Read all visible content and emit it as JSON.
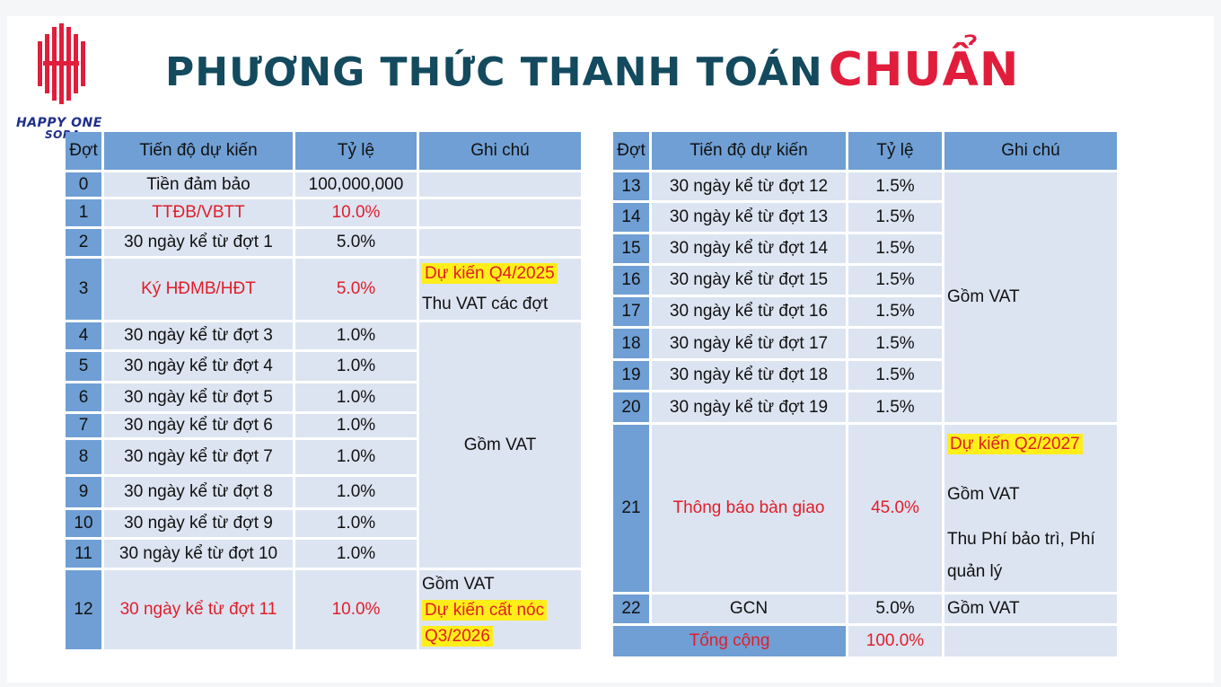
{
  "logo": {
    "line1": "HAPPY ONE",
    "line2": "SORA",
    "color": "#e11d3c"
  },
  "title": {
    "main": "PHƯƠNG THỨC THANH TOÁN",
    "accent": "CHUẨN"
  },
  "headers": [
    "Đợt",
    "Tiến độ dự kiến",
    "Tỷ lệ",
    "Ghi chú"
  ],
  "left": {
    "rows": [
      {
        "dot": "0",
        "tiendo": "Tiền đảm bảo",
        "tyle": "100,000,000"
      },
      {
        "dot": "1",
        "tiendo": "TTĐB/VBTT",
        "tyle": "10.0%"
      },
      {
        "dot": "2",
        "tiendo": "30 ngày kể từ đợt 1",
        "tyle": "5.0%"
      },
      {
        "dot": "3",
        "tiendo": "Ký HĐMB/HĐT",
        "tyle": "5.0%"
      },
      {
        "dot": "4",
        "tiendo": "30 ngày kể từ đợt 3",
        "tyle": "1.0%"
      },
      {
        "dot": "5",
        "tiendo": "30 ngày kể từ đợt 4",
        "tyle": "1.0%"
      },
      {
        "dot": "6",
        "tiendo": "30 ngày kể từ đợt 5",
        "tyle": "1.0%"
      },
      {
        "dot": "7",
        "tiendo": "30 ngày kể từ đợt 6",
        "tyle": "1.0%"
      },
      {
        "dot": "8",
        "tiendo": "30 ngày kể từ đợt 7",
        "tyle": "1.0%"
      },
      {
        "dot": "9",
        "tiendo": "30 ngày kể từ đợt 8",
        "tyle": "1.0%"
      },
      {
        "dot": "10",
        "tiendo": "30 ngày kể từ đợt 9",
        "tyle": "1.0%"
      },
      {
        "dot": "11",
        "tiendo": "30 ngày kể từ đợt 10",
        "tyle": "1.0%"
      },
      {
        "dot": "12",
        "tiendo": "30 ngày kể từ đợt 11",
        "tyle": "10.0%"
      }
    ],
    "notes": {
      "r3_hl": "Dự kiến Q4/2025",
      "r3_text": "Thu VAT các đợt",
      "r4_11": "Gồm VAT",
      "r12_text": "Gồm VAT",
      "r12_hl1": "Dự kiến cất nóc",
      "r12_hl2": "Q3/2026"
    }
  },
  "right": {
    "rows": [
      {
        "dot": "13",
        "tiendo": "30 ngày kể từ đợt 12",
        "tyle": "1.5%"
      },
      {
        "dot": "14",
        "tiendo": "30 ngày kể từ đợt 13",
        "tyle": "1.5%"
      },
      {
        "dot": "15",
        "tiendo": "30 ngày kể từ đợt 14",
        "tyle": "1.5%"
      },
      {
        "dot": "16",
        "tiendo": "30 ngày kể từ đợt 15",
        "tyle": "1.5%"
      },
      {
        "dot": "17",
        "tiendo": "30 ngày kể từ đợt 16",
        "tyle": "1.5%"
      },
      {
        "dot": "18",
        "tiendo": "30 ngày kể từ đợt 17",
        "tyle": "1.5%"
      },
      {
        "dot": "19",
        "tiendo": "30 ngày kể từ đợt 18",
        "tyle": "1.5%"
      },
      {
        "dot": "20",
        "tiendo": "30 ngày kể từ đợt 19",
        "tyle": "1.5%"
      },
      {
        "dot": "21",
        "tiendo": "Thông báo bàn giao",
        "tyle": "45.0%"
      },
      {
        "dot": "22",
        "tiendo": "GCN",
        "tyle": "5.0%"
      }
    ],
    "notes": {
      "r13_20": "Gồm VAT",
      "r21_hl": "Dự kiến Q2/2027",
      "r21_vat": "Gồm VAT",
      "r21_fee1": "Thu Phí bảo trì, Phí",
      "r21_fee2": "quản lý",
      "r22": "Gồm VAT"
    },
    "total": {
      "label": "Tổng cộng",
      "value": "100.0%"
    }
  }
}
